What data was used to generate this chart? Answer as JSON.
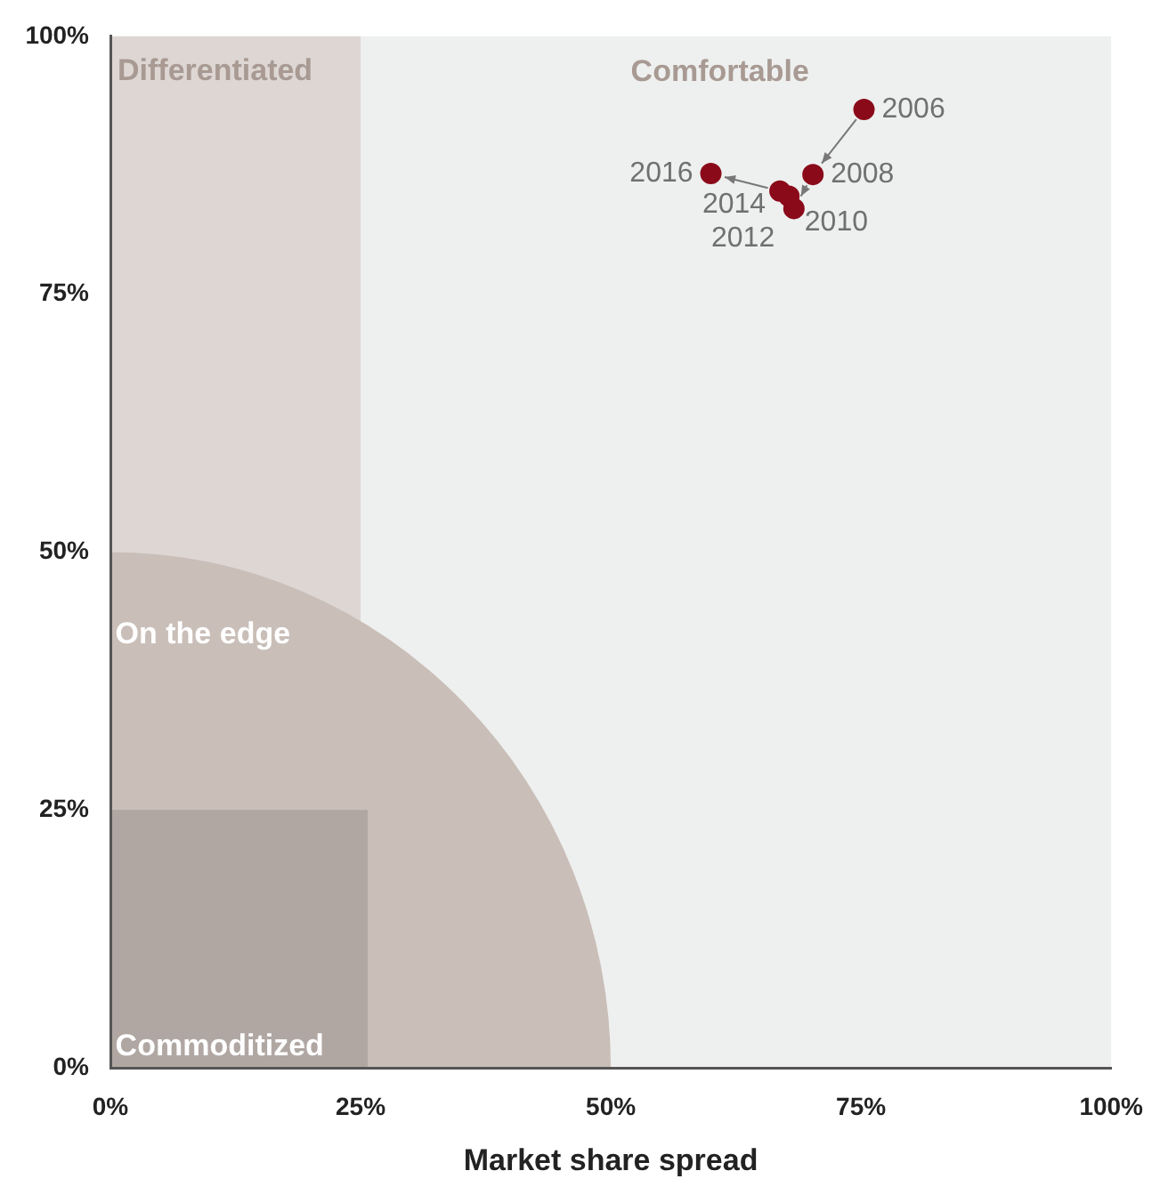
{
  "chart_data": {
    "type": "scatter",
    "xlabel": "Market share spread",
    "x": [
      75.3,
      70.2,
      68.3,
      67.8,
      66.9,
      60.0
    ],
    "values": [
      92.9,
      86.6,
      83.3,
      84.5,
      85.0,
      86.7
    ],
    "color": "#8b0a1a",
    "marker": "circle",
    "xlim": [
      0,
      100
    ],
    "ylim": [
      0,
      100
    ],
    "xticks": [
      {
        "value": 0,
        "label": "0%"
      },
      {
        "value": 25,
        "label": "25%"
      },
      {
        "value": 50,
        "label": "50%"
      },
      {
        "value": 75,
        "label": "75%"
      },
      {
        "value": 100,
        "label": "100%"
      }
    ],
    "yticks": [
      {
        "value": 0,
        "label": "0%"
      },
      {
        "value": 25,
        "label": "25%"
      },
      {
        "value": 50,
        "label": "50%"
      },
      {
        "value": 75,
        "label": "75%"
      },
      {
        "value": 100,
        "label": "100%"
      }
    ],
    "grid": false,
    "legend": false,
    "bands": [
      {
        "axis": "x",
        "from": 0,
        "to": 25,
        "label": "Differentiated",
        "color": "#ddd6d3"
      }
    ],
    "annotations": [
      {
        "text": "2006",
        "x": 75.3,
        "y": 92.9
      },
      {
        "text": "2008",
        "x": 70.2,
        "y": 86.6
      },
      {
        "text": "2010",
        "x": 68.3,
        "y": 83.3
      },
      {
        "text": "2012",
        "x": 67.8,
        "y": 84.5
      },
      {
        "text": "2014",
        "x": 66.9,
        "y": 85.0
      },
      {
        "text": "2016",
        "x": 60.0,
        "y": 86.7
      },
      "Comfortable",
      "On the edge",
      "Commoditized"
    ]
  }
}
